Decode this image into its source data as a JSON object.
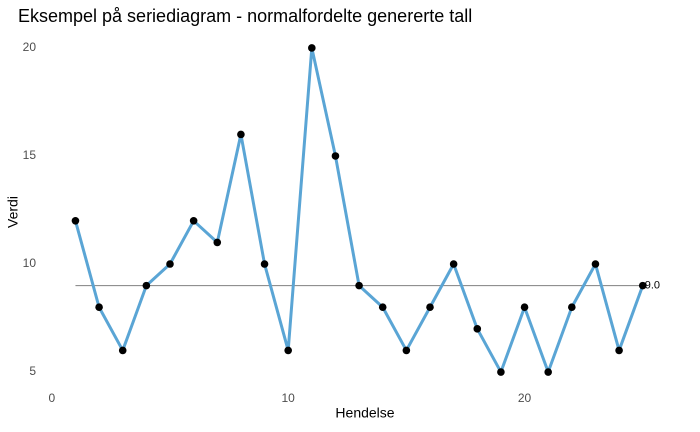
{
  "chart_data": {
    "type": "line",
    "title": "Eksempel på seriediagram - normalfordelte genererte tall",
    "x_label": "Hendelse",
    "y_label": "Verdi",
    "x": [
      1,
      2,
      3,
      4,
      5,
      6,
      7,
      8,
      9,
      10,
      11,
      12,
      13,
      14,
      15,
      16,
      17,
      18,
      19,
      20,
      21,
      22,
      23,
      24,
      25
    ],
    "series": [
      {
        "color": "#5aa5d5",
        "point_color": "#000000",
        "values": [
          12,
          8,
          6,
          9,
          10,
          12,
          11,
          16,
          10,
          6,
          20,
          15,
          9,
          8,
          6,
          8,
          10,
          7,
          5,
          8,
          5,
          8,
          10,
          6,
          9
        ]
      }
    ],
    "reference_line": {
      "value": 9,
      "label": "9.0",
      "color": "#808080"
    },
    "xlim": [
      -0.5,
      27
    ],
    "ylim": [
      4.4,
      20.6
    ],
    "xticks": [
      0,
      10,
      20
    ],
    "yticks": [
      5,
      10,
      15,
      20
    ],
    "grid": false
  }
}
